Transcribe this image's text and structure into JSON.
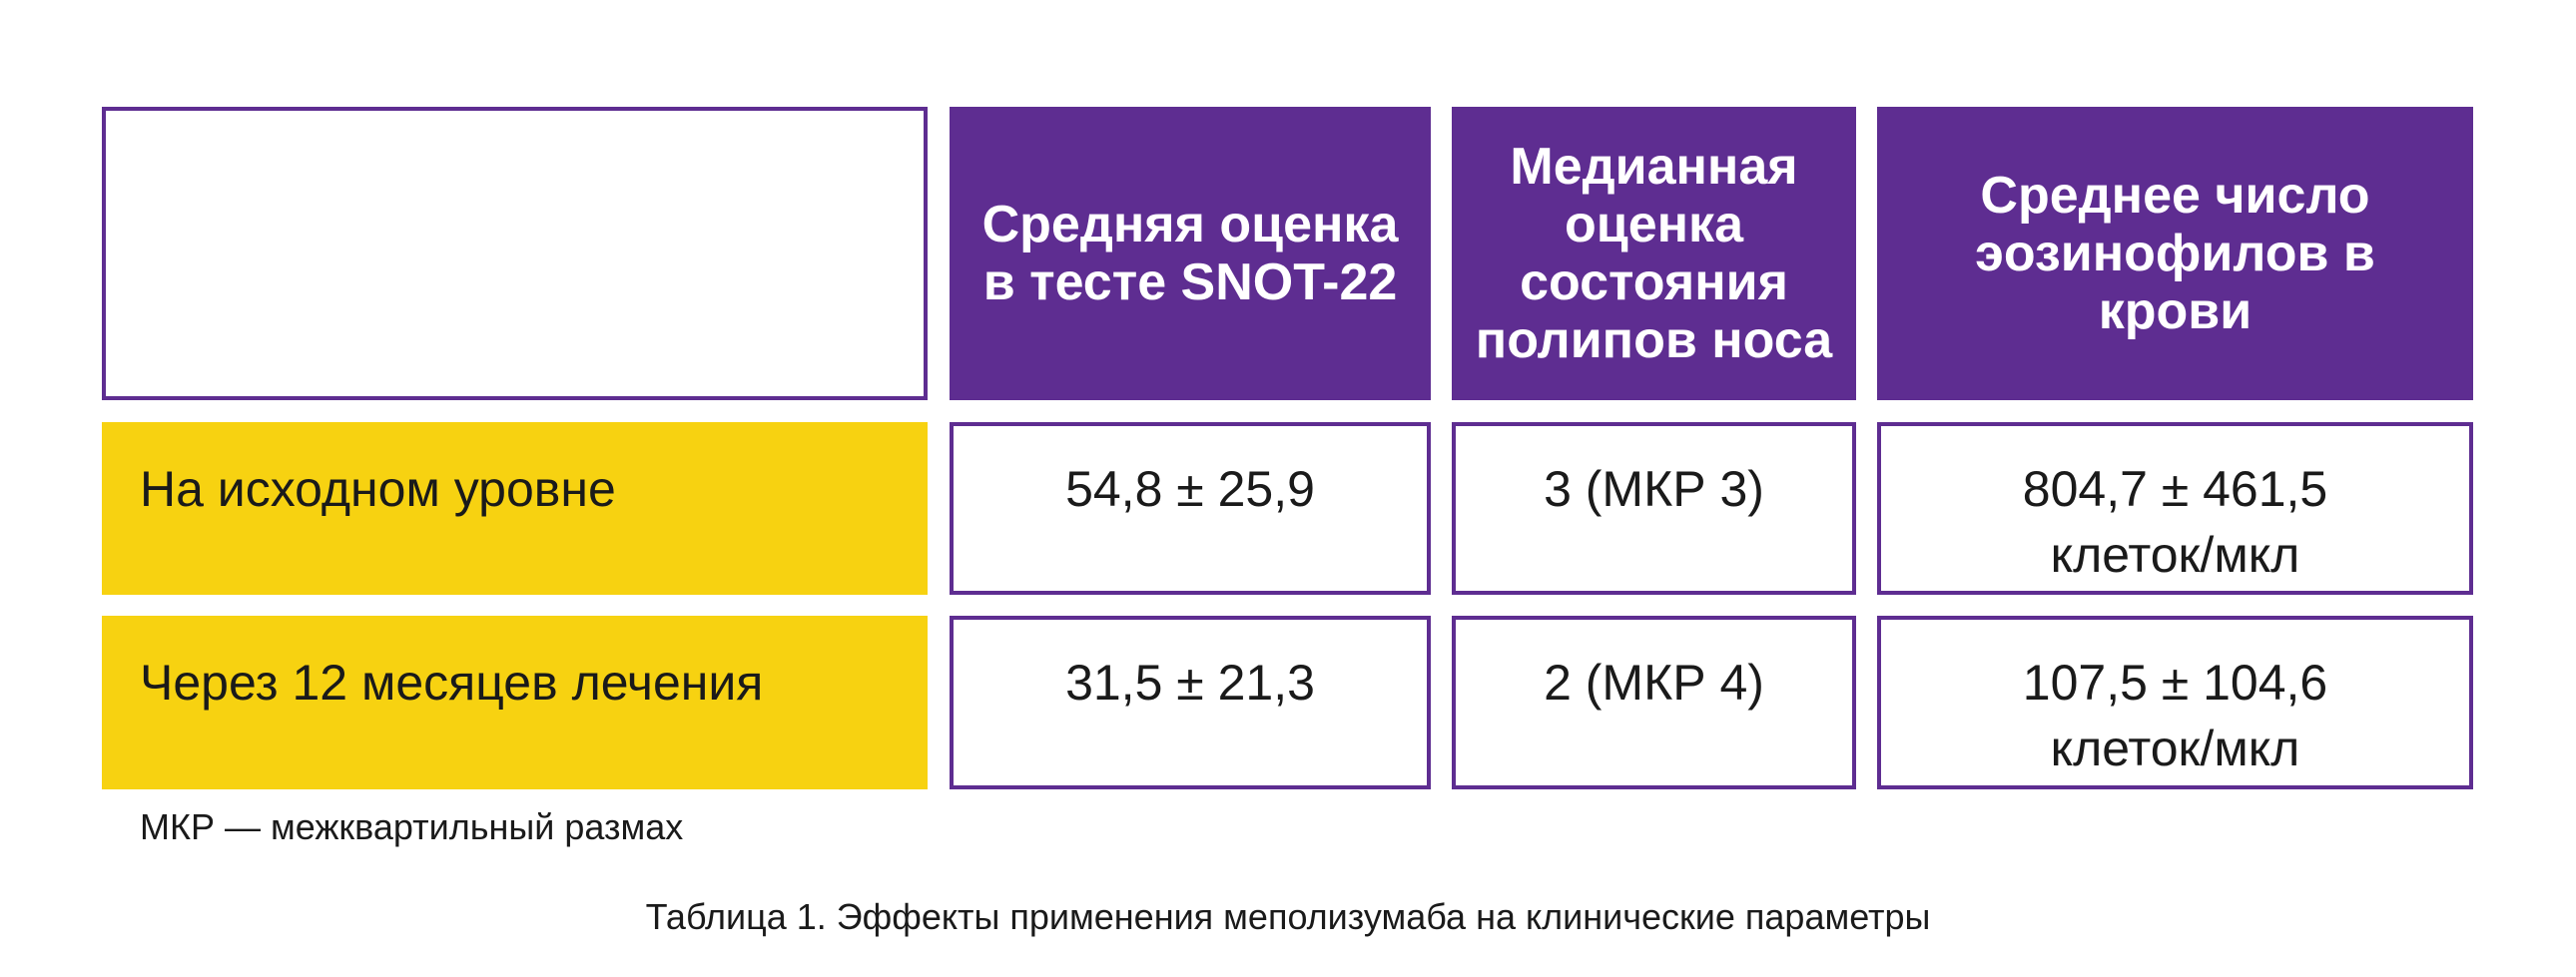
{
  "table": {
    "headers": [
      "",
      "Средняя оценка в тесте SNOT-22",
      "Медианная оценка состояния полипов носа",
      "Среднее число эозинофилов в крови"
    ],
    "rows": [
      {
        "label": "На исходном уровне",
        "cells": [
          "54,8 ± 25,9",
          "3 (МКР 3)",
          "804,7 ± 461,5 клеток/мкл"
        ]
      },
      {
        "label": "Через 12 месяцев лечения",
        "cells": [
          "31,5 ± 21,3",
          "2 (МКР 4)",
          "107,5 ± 104,6 клеток/мкл"
        ]
      }
    ]
  },
  "footnote": "МКР — межквартильный размах",
  "caption": "Таблица 1. Эффекты применения меполизумаба на клинические параметры",
  "colors": {
    "header": "#5e2d91",
    "row_label": "#f7d211"
  }
}
